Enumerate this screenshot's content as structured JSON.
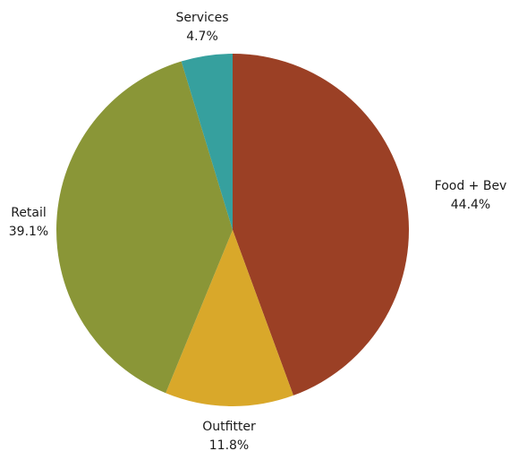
{
  "chart_data": {
    "type": "pie",
    "title": "",
    "slices": [
      {
        "label": "Food + Bev",
        "value": 44.4,
        "display": "44.4%",
        "color": "#9b4025"
      },
      {
        "label": "Outfitter",
        "value": 11.8,
        "display": "11.8%",
        "color": "#d9a82a"
      },
      {
        "label": "Retail",
        "value": 39.1,
        "display": "39.1%",
        "color": "#8a9637"
      },
      {
        "label": "Services",
        "value": 4.7,
        "display": "4.7%",
        "color": "#36a09e"
      }
    ],
    "legend": "none",
    "start_angle": "12 o'clock",
    "direction": "clockwise"
  }
}
